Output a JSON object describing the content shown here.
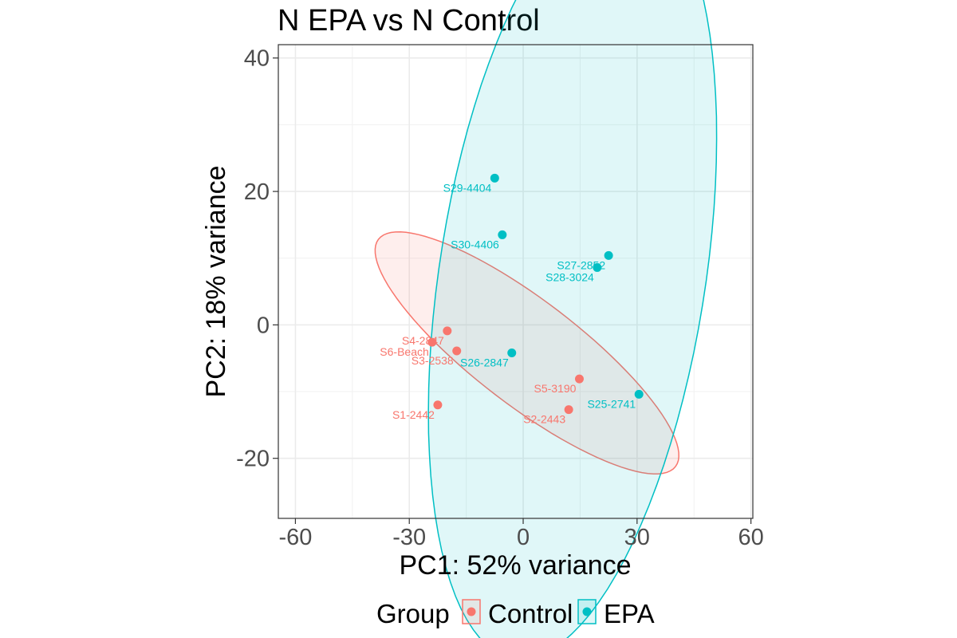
{
  "chart_data": {
    "type": "scatter",
    "title": "N EPA vs  N Control",
    "xlabel": "PC1: 52% variance",
    "ylabel": "PC2: 18% variance",
    "xlim": [
      -64.5,
      60.5
    ],
    "ylim": [
      -29,
      42
    ],
    "xticks": [
      -60,
      -30,
      0,
      30,
      60
    ],
    "xtick_labels": [
      "-60",
      "-30",
      "0",
      "30",
      "60"
    ],
    "yticks": [
      -20,
      0,
      20,
      40
    ],
    "ytick_labels": [
      "-20",
      "0",
      "20",
      "40"
    ],
    "grid": true,
    "legend": {
      "title": "Group",
      "position": "bottom",
      "entries": [
        "Control",
        "EPA"
      ]
    },
    "series": [
      {
        "name": "Control",
        "color": "#F8766D",
        "points": [
          {
            "label": "S1-2442",
            "x": -22.5,
            "y": -12.0
          },
          {
            "label": "S2-2443",
            "x": 12.0,
            "y": -12.7
          },
          {
            "label": "S3-2538",
            "x": -17.5,
            "y": -3.9
          },
          {
            "label": "S4-2847",
            "x": -20.0,
            "y": -0.9
          },
          {
            "label": "S5-3190",
            "x": 14.8,
            "y": -8.1
          },
          {
            "label": "S6-Beach",
            "x": -24.0,
            "y": -2.6
          }
        ],
        "ellipse": {
          "cx": 1.0,
          "cy": -4.2,
          "rx": 43.0,
          "ry": 9.0,
          "angle_deg": -22
        }
      },
      {
        "name": "EPA",
        "color": "#00BFC4",
        "points": [
          {
            "label": "S25-2741",
            "x": 30.5,
            "y": -10.4
          },
          {
            "label": "S26-2847",
            "x": -3.0,
            "y": -4.2
          },
          {
            "label": "S27-2852",
            "x": 22.5,
            "y": 10.4
          },
          {
            "label": "S28-3024",
            "x": 19.5,
            "y": 8.6
          },
          {
            "label": "S29-4404",
            "x": -7.5,
            "y": 22.0
          },
          {
            "label": "S30-4406",
            "x": -5.5,
            "y": 13.5
          }
        ],
        "ellipse": {
          "cx": 13.0,
          "cy": 7.5,
          "rx": 34.0,
          "ry": 60.0,
          "angle_deg": -20
        }
      }
    ]
  }
}
